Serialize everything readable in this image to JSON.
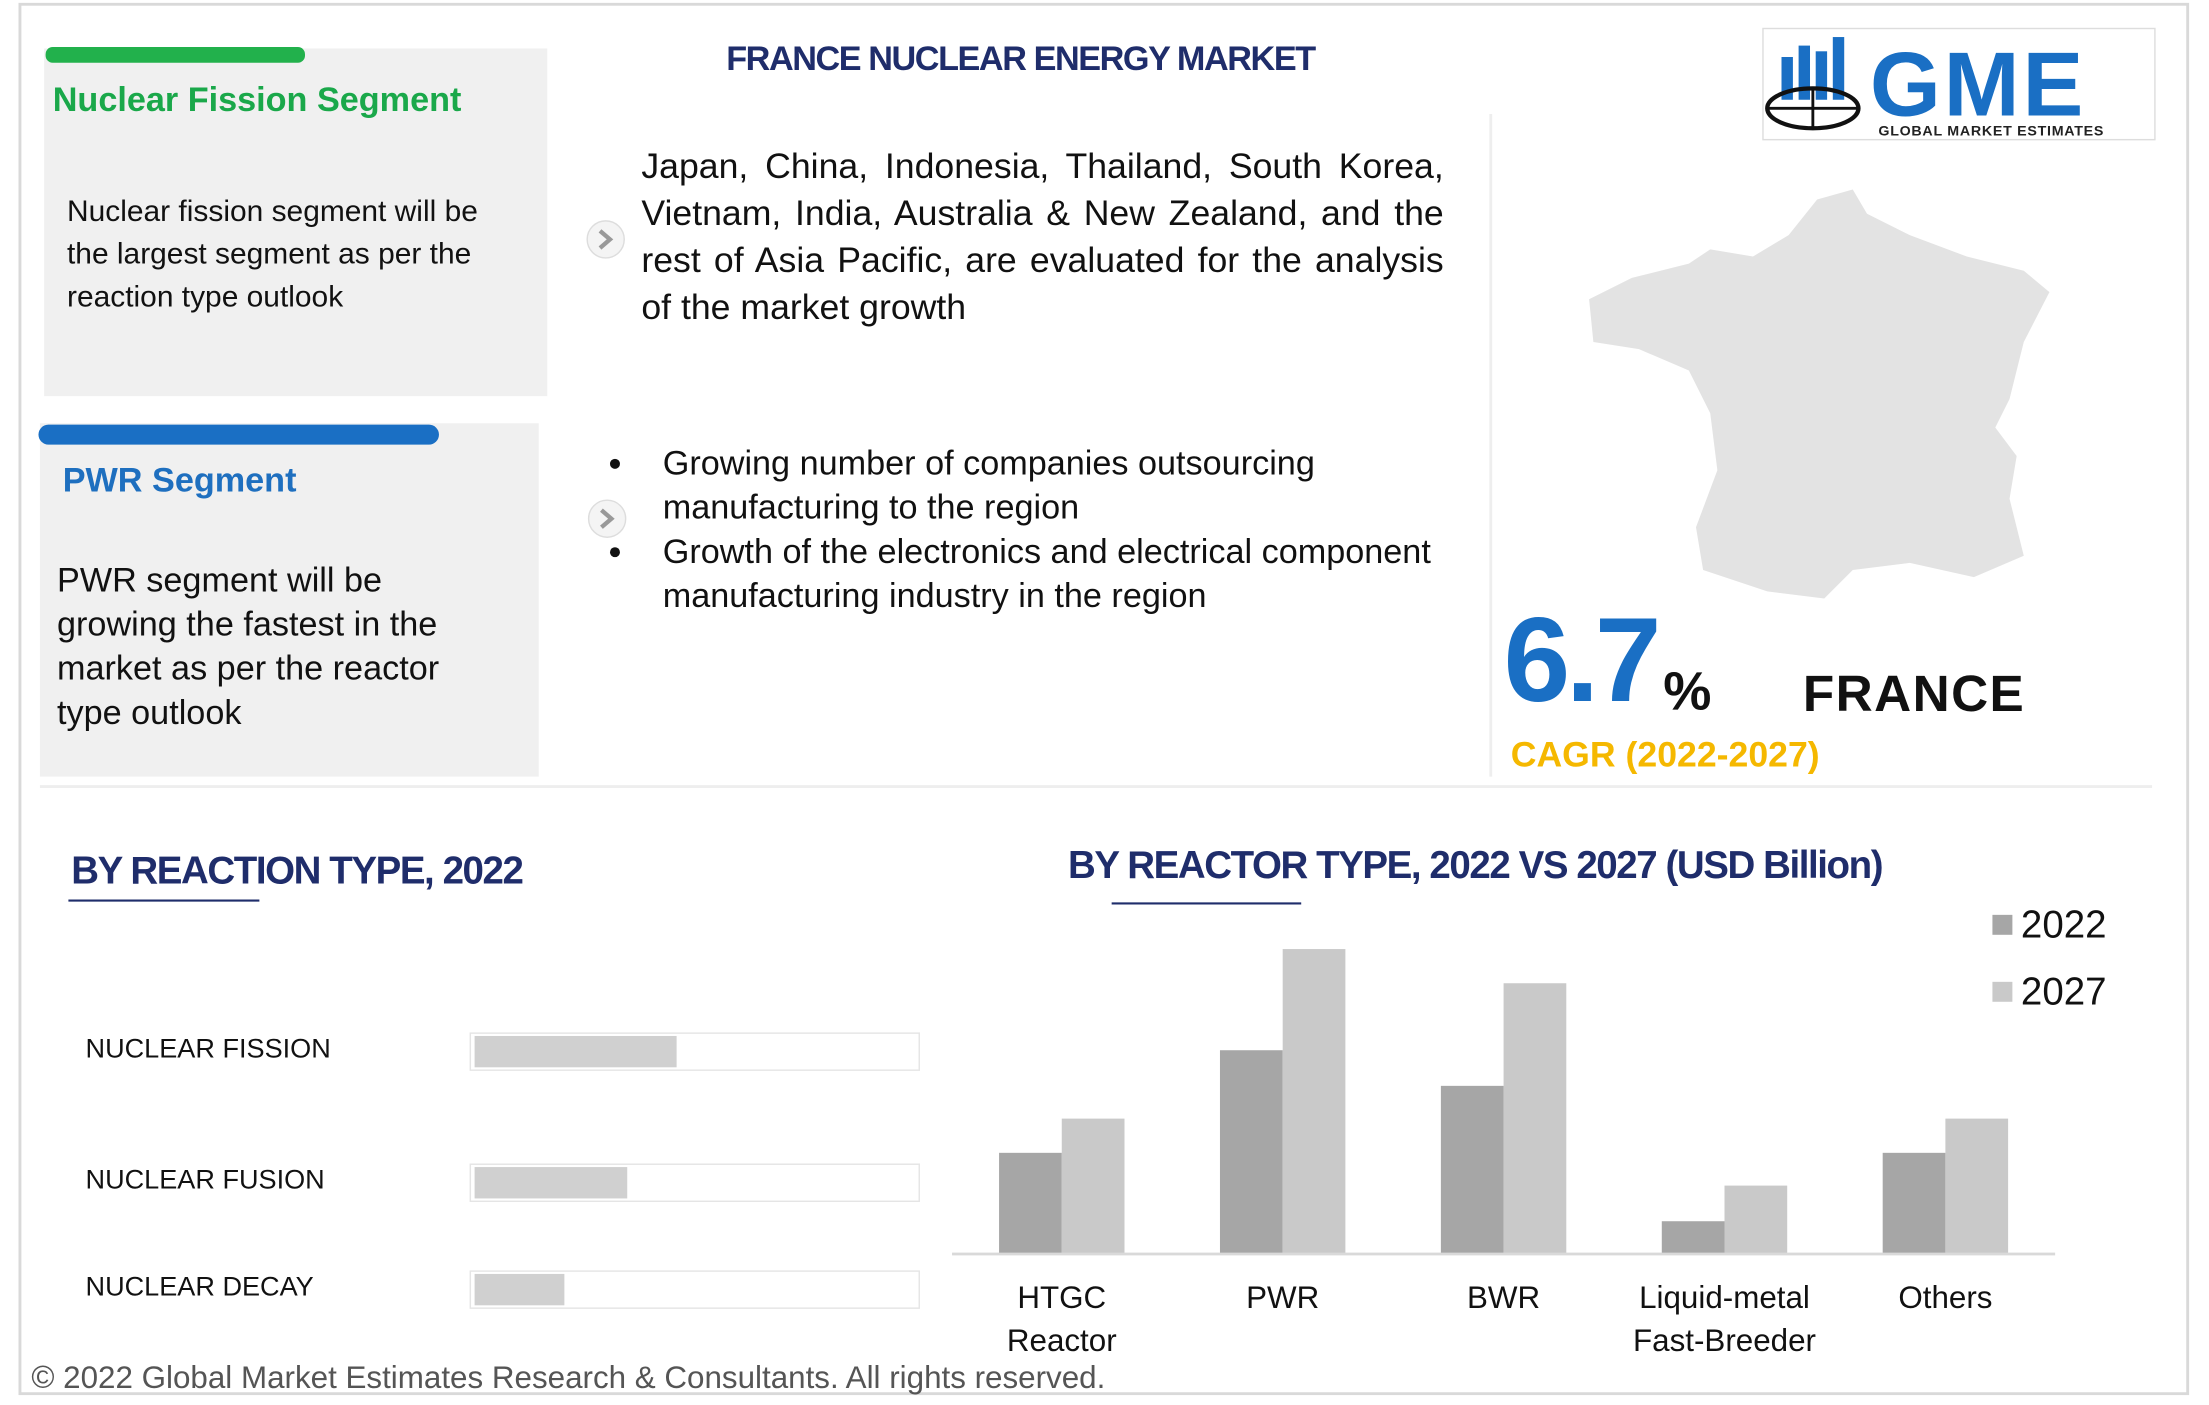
{
  "header": {
    "title": "FRANCE NUCLEAR ENERGY MARKET"
  },
  "logo": {
    "name": "GME",
    "tagline": "GLOBAL MARKET ESTIMATES"
  },
  "segments": [
    {
      "title": "Nuclear Fission Segment",
      "text": "Nuclear fission segment will be the largest segment as per the reaction type outlook"
    },
    {
      "title": "PWR Segment",
      "text": "PWR segment will be growing the fastest in the market as per the reactor type outlook"
    }
  ],
  "regions_text": "Japan, China, Indonesia, Thailand, South Korea, Vietnam, India, Australia & New Zealand, and the rest of Asia Pacific, are evaluated for the analysis of the market growth",
  "drivers": [
    "Growing number of companies outsourcing manufacturing to the region",
    "Growth of the electronics and electrical component manufacturing industry in the region"
  ],
  "cagr": {
    "value": "6.7",
    "unit": "%",
    "country": "FRANCE",
    "label": "CAGR (2022-2027)"
  },
  "chart_data": [
    {
      "type": "bar",
      "orientation": "horizontal",
      "title": "BY REACTION TYPE, 2022",
      "categories": [
        "NUCLEAR FISSION",
        "NUCLEAR FUSION",
        "NUCLEAR DECAY"
      ],
      "values": [
        45,
        34,
        20
      ],
      "color": "#d0d0d0",
      "xlim": [
        0,
        100
      ]
    },
    {
      "type": "bar",
      "orientation": "vertical",
      "title": "BY REACTOR TYPE, 2022 VS 2027 (USD Billion)",
      "categories": [
        "HTGC Reactor",
        "PWR",
        "BWR",
        "Liquid-metal Fast-Breeder",
        "Others"
      ],
      "series": [
        {
          "name": "2022",
          "color": "#a6a6a6",
          "values": [
            71,
            143,
            118,
            23,
            71
          ]
        },
        {
          "name": "2027",
          "color": "#c9c9c9",
          "values": [
            95,
            214,
            190,
            48,
            95
          ]
        }
      ],
      "ylim": [
        0,
        250
      ]
    }
  ],
  "footer": "© 2022 Global Market Estimates Research & Consultants. All rights reserved."
}
